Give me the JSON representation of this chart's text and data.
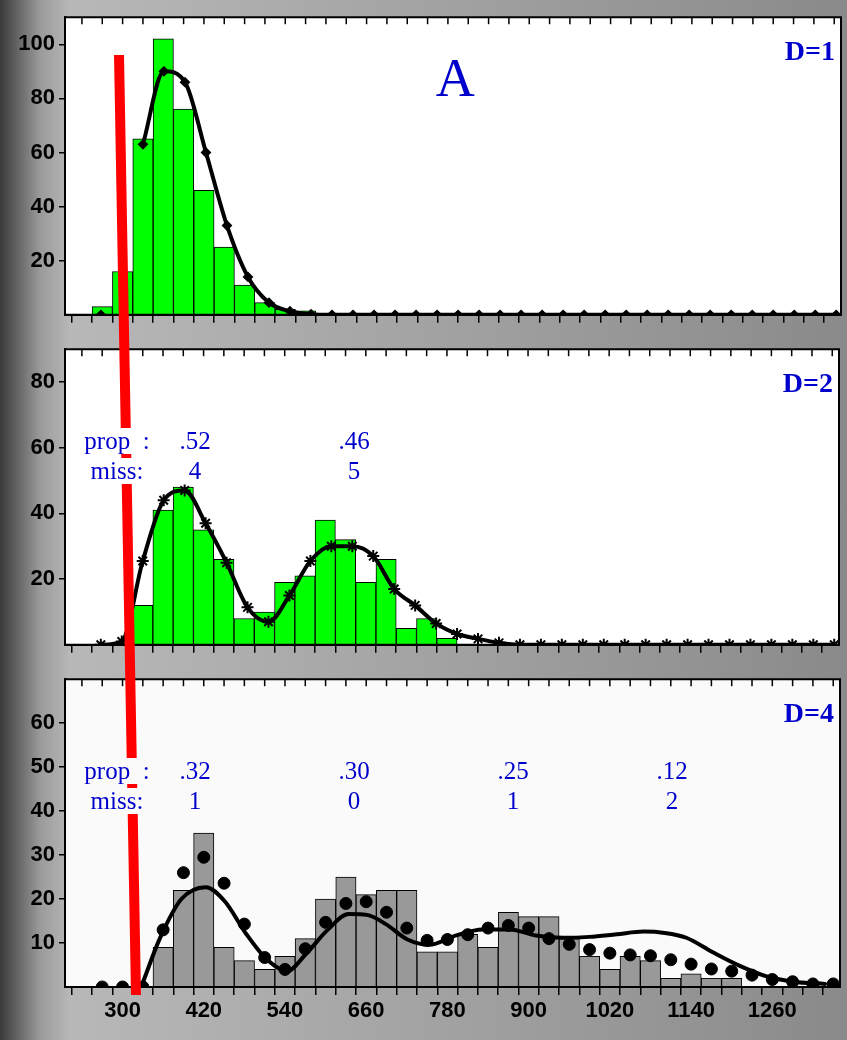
{
  "chart_data": [
    {
      "type": "histogram",
      "title": "A",
      "annotations": [
        "D=1"
      ],
      "series": [
        {
          "type": "histogram",
          "color": "#00ff00",
          "bins": [
            255,
            285,
            315,
            345,
            375,
            405,
            435,
            465,
            495,
            525,
            555,
            585
          ],
          "values": [
            3,
            16,
            65,
            102,
            76,
            46,
            25,
            11,
            4.5,
            2,
            1.5
          ]
        },
        {
          "type": "line",
          "color": "#000000",
          "marker": "diamond",
          "x": [
            268,
            299,
            330,
            361,
            392,
            423,
            454,
            485,
            516,
            547,
            578,
            609,
            640,
            671,
            702,
            733,
            764,
            795,
            826,
            857,
            888,
            919,
            950,
            981,
            1012,
            1043,
            1074,
            1105,
            1136,
            1167,
            1198,
            1229,
            1260,
            1291,
            1322,
            1353
          ],
          "values": [
            0,
            null,
            63,
            90,
            86,
            60,
            33,
            14,
            4.5,
            1.3,
            0.2,
            0,
            0,
            0,
            0,
            0,
            0,
            0,
            0,
            0,
            0,
            0,
            0,
            0,
            0,
            0,
            0,
            0,
            0,
            0,
            0,
            0,
            0,
            0,
            0,
            0
          ]
        }
      ],
      "xlim": [
        215,
        1360
      ],
      "xticks": [
        {
          "value": 240,
          "label": null
        },
        {
          "value": 270,
          "label": null
        },
        {
          "value": 300,
          "label": null
        },
        {
          "value": 330,
          "label": null
        },
        {
          "value": 360,
          "label": null
        },
        {
          "value": 390,
          "label": null
        },
        {
          "value": 420,
          "label": null
        },
        {
          "value": 450,
          "label": null
        },
        {
          "value": 480,
          "label": null
        },
        {
          "value": 510,
          "label": null
        },
        {
          "value": 540,
          "label": null
        },
        {
          "value": 570,
          "label": null
        },
        {
          "value": 600,
          "label": null
        },
        {
          "value": 630,
          "label": null
        },
        {
          "value": 660,
          "label": null
        },
        {
          "value": 690,
          "label": null
        },
        {
          "value": 720,
          "label": null
        },
        {
          "value": 750,
          "label": null
        },
        {
          "value": 780,
          "label": null
        },
        {
          "value": 810,
          "label": null
        },
        {
          "value": 840,
          "label": null
        },
        {
          "value": 870,
          "label": null
        },
        {
          "value": 900,
          "label": null
        },
        {
          "value": 930,
          "label": null
        },
        {
          "value": 960,
          "label": null
        },
        {
          "value": 990,
          "label": null
        },
        {
          "value": 1020,
          "label": null
        },
        {
          "value": 1050,
          "label": null
        },
        {
          "value": 1080,
          "label": null
        },
        {
          "value": 1110,
          "label": null
        },
        {
          "value": 1140,
          "label": null
        },
        {
          "value": 1170,
          "label": null
        },
        {
          "value": 1200,
          "label": null
        },
        {
          "value": 1230,
          "label": null
        },
        {
          "value": 1260,
          "label": null
        },
        {
          "value": 1290,
          "label": null
        },
        {
          "value": 1320,
          "label": null
        },
        {
          "value": 1350,
          "label": null
        }
      ],
      "ylim": [
        0,
        110
      ],
      "yticks": [
        20,
        40,
        60,
        80,
        100
      ],
      "tick_labels": "y",
      "grid": false,
      "legend": false
    },
    {
      "type": "histogram",
      "annotations": [
        "D=2",
        "prop  :",
        ".52",
        ".46",
        "miss:",
        "4",
        "5"
      ],
      "series": [
        {
          "type": "histogram",
          "color": "#00ff00",
          "bins": [
            315,
            345,
            375,
            405,
            435,
            465,
            495,
            525,
            555,
            585,
            615,
            645,
            675,
            705,
            735,
            765,
            795
          ],
          "values": [
            12,
            41,
            48,
            35,
            26,
            8,
            10,
            19,
            21,
            38,
            32,
            19,
            26,
            5,
            8,
            2
          ]
        },
        {
          "type": "line",
          "color": "#000000",
          "marker": "cross",
          "x": [
            268,
            299,
            330,
            361,
            392,
            423,
            454,
            485,
            516,
            547,
            578,
            609,
            640,
            671,
            702,
            733,
            764,
            795,
            826,
            857,
            888,
            919,
            950,
            981,
            1012,
            1043,
            1074,
            1105,
            1136,
            1167,
            1198,
            1229,
            1260,
            1291,
            1322,
            1353
          ],
          "values": [
            0,
            1,
            25.5,
            44,
            47,
            37,
            25,
            11.4,
            7,
            15,
            25.5,
            30,
            30,
            27,
            17,
            12,
            6.5,
            3.3,
            1.8,
            0.6,
            0,
            0,
            0,
            0,
            0,
            0,
            0,
            0,
            0,
            0,
            0,
            0,
            0,
            0,
            0,
            0
          ]
        }
      ],
      "xlim": [
        215,
        1360
      ],
      "xticks": [
        {
          "value": 240,
          "label": null
        },
        {
          "value": 270,
          "label": null
        },
        {
          "value": 300,
          "label": null
        },
        {
          "value": 330,
          "label": null
        },
        {
          "value": 360,
          "label": null
        },
        {
          "value": 390,
          "label": null
        },
        {
          "value": 420,
          "label": null
        },
        {
          "value": 450,
          "label": null
        },
        {
          "value": 480,
          "label": null
        },
        {
          "value": 510,
          "label": null
        },
        {
          "value": 540,
          "label": null
        },
        {
          "value": 570,
          "label": null
        },
        {
          "value": 600,
          "label": null
        },
        {
          "value": 630,
          "label": null
        },
        {
          "value": 660,
          "label": null
        },
        {
          "value": 690,
          "label": null
        },
        {
          "value": 720,
          "label": null
        },
        {
          "value": 750,
          "label": null
        },
        {
          "value": 780,
          "label": null
        },
        {
          "value": 810,
          "label": null
        },
        {
          "value": 840,
          "label": null
        },
        {
          "value": 870,
          "label": null
        },
        {
          "value": 900,
          "label": null
        },
        {
          "value": 930,
          "label": null
        },
        {
          "value": 960,
          "label": null
        },
        {
          "value": 990,
          "label": null
        },
        {
          "value": 1020,
          "label": null
        },
        {
          "value": 1050,
          "label": null
        },
        {
          "value": 1080,
          "label": null
        },
        {
          "value": 1110,
          "label": null
        },
        {
          "value": 1140,
          "label": null
        },
        {
          "value": 1170,
          "label": null
        },
        {
          "value": 1200,
          "label": null
        },
        {
          "value": 1230,
          "label": null
        },
        {
          "value": 1260,
          "label": null
        },
        {
          "value": 1290,
          "label": null
        },
        {
          "value": 1320,
          "label": null
        },
        {
          "value": 1350,
          "label": null
        }
      ],
      "ylim": [
        0,
        90
      ],
      "yticks": [
        20,
        40,
        60,
        80
      ],
      "tick_labels": "y",
      "grid": false,
      "legend": false
    },
    {
      "type": "histogram",
      "annotations": [
        "D=4",
        "prop  :",
        ".32",
        ".30",
        ".25",
        ".12",
        "miss:",
        "1",
        "0",
        "1",
        "2"
      ],
      "series": [
        {
          "type": "histogram",
          "color": "#999999",
          "bins": [
            345,
            375,
            405,
            435,
            465,
            495,
            525,
            555,
            585,
            615,
            645,
            675,
            705,
            735,
            765,
            795,
            825,
            855,
            885,
            915,
            945,
            975,
            1005,
            1035,
            1065,
            1095,
            1125,
            1155,
            1185,
            1215
          ],
          "values": [
            9,
            22,
            35,
            9,
            6,
            4,
            7,
            11,
            20,
            25,
            21,
            22,
            22,
            8,
            8,
            12,
            9,
            17,
            16,
            16,
            11,
            7,
            4,
            7,
            6,
            2,
            3,
            2,
            2
          ]
        },
        {
          "type": "line",
          "color": "#000000",
          "marker": "none",
          "x": [
            330,
            355,
            387,
            423,
            451,
            483,
            515,
            543,
            571,
            603,
            634,
            661,
            689,
            721,
            753,
            792,
            832,
            872,
            911,
            951,
            990,
            1030,
            1070,
            1101,
            1133,
            1172,
            1212,
            1252,
            1291,
            1338
          ],
          "values": [
            1,
            11,
            20,
            22.7,
            19.5,
            12,
            6,
            3.6,
            7.5,
            13,
            16.6,
            16.4,
            14.3,
            10.8,
            9.6,
            11.7,
            13.1,
            13.1,
            11.7,
            11.2,
            11.4,
            12,
            12.6,
            12.3,
            11.2,
            7.9,
            4.8,
            2.4,
            1.2,
            0.7
          ]
        },
        {
          "type": "scatter",
          "color": "#000000",
          "marker": "circle",
          "x": [
            270,
            300,
            330,
            360,
            390,
            420,
            450,
            480,
            510,
            540,
            570,
            600,
            630,
            660,
            690,
            720,
            750,
            780,
            810,
            840,
            870,
            900,
            930,
            960,
            990,
            1020,
            1050,
            1080,
            1110,
            1140,
            1170,
            1200,
            1230,
            1260,
            1290,
            1320,
            1350
          ],
          "values": [
            0,
            0,
            0,
            13,
            26,
            29.5,
            23.6,
            14.3,
            6.7,
            4,
            8.7,
            14.7,
            19,
            19.4,
            17,
            13.4,
            10.6,
            10.8,
            11.9,
            13.4,
            14,
            13.4,
            11,
            9.7,
            8.5,
            7.7,
            7.3,
            7.1,
            6.2,
            5.2,
            4.1,
            3.6,
            2.7,
            1.7,
            1.2,
            0.7,
            0.7
          ]
        }
      ],
      "xlim": [
        215,
        1360
      ],
      "xticks": [
        {
          "value": 240,
          "label": null
        },
        {
          "value": 270,
          "label": null
        },
        300,
        {
          "value": 330,
          "label": null
        },
        {
          "value": 360,
          "label": null
        },
        {
          "value": 390,
          "label": null
        },
        420,
        {
          "value": 450,
          "label": null
        },
        {
          "value": 480,
          "label": null
        },
        {
          "value": 510,
          "label": null
        },
        540,
        {
          "value": 570,
          "label": null
        },
        {
          "value": 600,
          "label": null
        },
        {
          "value": 630,
          "label": null
        },
        660,
        {
          "value": 690,
          "label": null
        },
        {
          "value": 720,
          "label": null
        },
        {
          "value": 750,
          "label": null
        },
        780,
        {
          "value": 810,
          "label": null
        },
        {
          "value": 840,
          "label": null
        },
        {
          "value": 870,
          "label": null
        },
        900,
        {
          "value": 930,
          "label": null
        },
        {
          "value": 960,
          "label": null
        },
        {
          "value": 990,
          "label": null
        },
        1020,
        {
          "value": 1050,
          "label": null
        },
        {
          "value": 1080,
          "label": null
        },
        {
          "value": 1110,
          "label": null
        },
        1140,
        {
          "value": 1170,
          "label": null
        },
        {
          "value": 1200,
          "label": null
        },
        {
          "value": 1230,
          "label": null
        },
        1260,
        {
          "value": 1290,
          "label": null
        },
        {
          "value": 1320,
          "label": null
        },
        {
          "value": 1350,
          "label": null
        }
      ],
      "ylim": [
        0,
        70
      ],
      "yticks": [
        10,
        20,
        30,
        40,
        50,
        60
      ],
      "grid": false,
      "legend": false
    }
  ]
}
